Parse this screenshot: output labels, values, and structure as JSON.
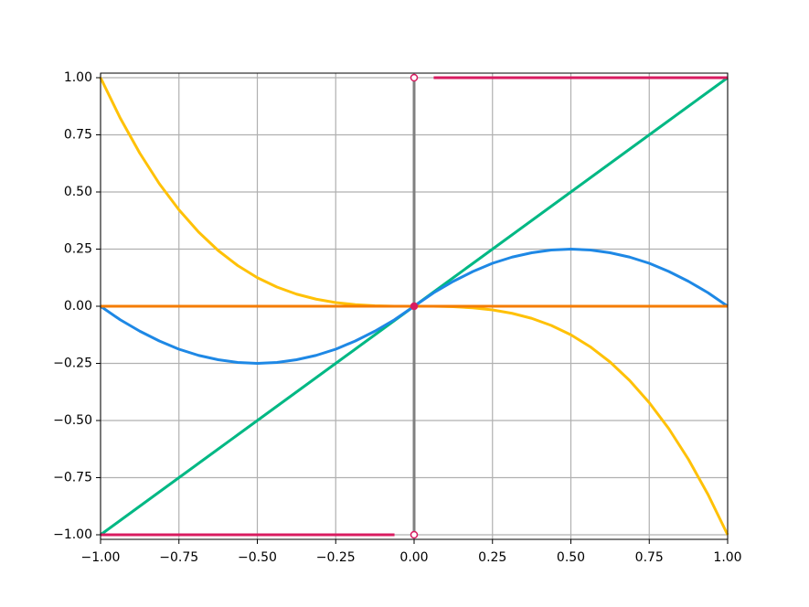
{
  "chart_data": {
    "type": "line",
    "x": [
      -1,
      -0.9375,
      -0.875,
      -0.8125,
      -0.75,
      -0.6875,
      -0.625,
      -0.5625,
      -0.5,
      -0.4375,
      -0.375,
      -0.3125,
      -0.25,
      -0.1875,
      -0.125,
      -0.0625,
      0,
      0.0625,
      0.125,
      0.1875,
      0.25,
      0.3125,
      0.375,
      0.4375,
      0.5,
      0.5625,
      0.625,
      0.6875,
      0.75,
      0.8125,
      0.875,
      0.9375,
      1
    ],
    "series": [
      {
        "color": "#00b884",
        "values": [
          -1,
          -0.9375,
          -0.875,
          -0.8125,
          -0.75,
          -0.6875,
          -0.625,
          -0.5625,
          -0.5,
          -0.4375,
          -0.375,
          -0.3125,
          -0.25,
          -0.1875,
          -0.125,
          -0.0625,
          0,
          0.0625,
          0.125,
          0.1875,
          0.25,
          0.3125,
          0.375,
          0.4375,
          0.5,
          0.5625,
          0.625,
          0.6875,
          0.75,
          0.8125,
          0.875,
          0.9375,
          1
        ]
      },
      {
        "color": "#1e88e5",
        "values": [
          0,
          -0.059,
          -0.109,
          -0.152,
          -0.188,
          -0.215,
          -0.234,
          -0.246,
          -0.25,
          -0.246,
          -0.234,
          -0.215,
          -0.188,
          -0.152,
          -0.109,
          -0.059,
          0,
          0.059,
          0.109,
          0.152,
          0.188,
          0.215,
          0.234,
          0.246,
          0.25,
          0.246,
          0.234,
          0.215,
          0.188,
          0.152,
          0.109,
          0.059,
          0
        ]
      },
      {
        "color": "#ffc107",
        "values": [
          1,
          0.824,
          0.67,
          0.536,
          0.422,
          0.325,
          0.244,
          0.178,
          0.125,
          0.084,
          0.053,
          0.031,
          0.016,
          0.007,
          0.002,
          0,
          0,
          0,
          -0.002,
          -0.007,
          -0.016,
          -0.031,
          -0.053,
          -0.084,
          -0.125,
          -0.178,
          -0.244,
          -0.325,
          -0.422,
          -0.536,
          -0.67,
          -0.824,
          -1
        ]
      },
      {
        "color": "#f57c00",
        "values": [
          0,
          0,
          0,
          0,
          0,
          0,
          0,
          0,
          0,
          0,
          0,
          0,
          0,
          0,
          0,
          0,
          0,
          0,
          0,
          0,
          0,
          0,
          0,
          0,
          0,
          0,
          0,
          0,
          0,
          0,
          0,
          0,
          0
        ]
      },
      {
        "color": "#d81b60",
        "values": [
          -1,
          -1,
          -1,
          -1,
          -1,
          -1,
          -1,
          -1,
          -1,
          -1,
          -1,
          -1,
          -1,
          -1,
          -1,
          -1,
          null,
          1,
          1,
          1,
          1,
          1,
          1,
          1,
          1,
          1,
          1,
          1,
          1,
          1,
          1,
          1,
          1
        ]
      }
    ],
    "vlines": [
      {
        "x": 0,
        "ymin": -1,
        "ymax": 1,
        "color": "#808080"
      }
    ],
    "markers": [
      {
        "x": 0,
        "y": 1,
        "color": "#d81b60",
        "fill": "#ffffff"
      },
      {
        "x": 0,
        "y": -1,
        "color": "#d81b60",
        "fill": "#ffffff"
      },
      {
        "x": 0,
        "y": 0,
        "color": "#d81b60",
        "fill": "#d81b60"
      }
    ],
    "xlim": [
      -1,
      1
    ],
    "ylim": [
      -1.02,
      1.02
    ],
    "xticks": [
      {
        "value": -1,
        "label": "−1.00"
      },
      {
        "value": -0.75,
        "label": "−0.75"
      },
      {
        "value": -0.5,
        "label": "−0.50"
      },
      {
        "value": -0.25,
        "label": "−0.25"
      },
      {
        "value": 0,
        "label": "0.00"
      },
      {
        "value": 0.25,
        "label": "0.25"
      },
      {
        "value": 0.5,
        "label": "0.50"
      },
      {
        "value": 0.75,
        "label": "0.75"
      },
      {
        "value": 1,
        "label": "1.00"
      }
    ],
    "yticks": [
      {
        "value": -1,
        "label": "−1.00"
      },
      {
        "value": -0.75,
        "label": "−0.75"
      },
      {
        "value": -0.5,
        "label": "−0.50"
      },
      {
        "value": -0.25,
        "label": "−0.25"
      },
      {
        "value": 0,
        "label": "0.00"
      },
      {
        "value": 0.25,
        "label": "0.25"
      },
      {
        "value": 0.5,
        "label": "0.50"
      },
      {
        "value": 0.75,
        "label": "0.75"
      },
      {
        "value": 1,
        "label": "1.00"
      }
    ],
    "grid": true
  }
}
